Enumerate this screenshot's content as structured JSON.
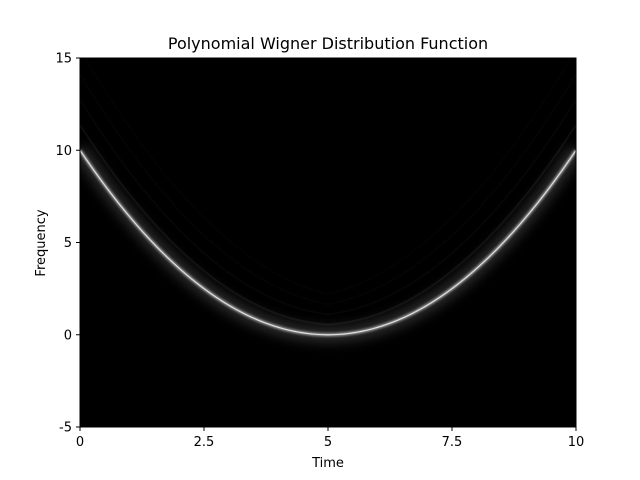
{
  "chart_data": {
    "type": "heatmap",
    "title": "Polynomial Wigner Distribution Function",
    "xlabel": "Time",
    "ylabel": "Frequency",
    "xlim": [
      0,
      10
    ],
    "ylim": [
      -5,
      15
    ],
    "x_ticks": [
      0,
      2.5,
      5,
      7.5,
      10
    ],
    "x_tick_labels": [
      "0",
      "2.5",
      "5",
      "7.5",
      "10"
    ],
    "y_ticks": [
      -5,
      0,
      5,
      10,
      15
    ],
    "y_tick_labels": [
      "-5",
      "0",
      "5",
      "10",
      "15"
    ],
    "grid": false,
    "legend": false,
    "colormap": "gray",
    "background_color": "#000000",
    "ridge": {
      "description": "quadratic instantaneous frequency",
      "x": [
        0,
        1,
        2,
        3,
        4,
        5,
        6,
        7,
        8,
        9,
        10
      ],
      "y": [
        10,
        6.4,
        3.6,
        1.6,
        0.4,
        0,
        0.4,
        1.6,
        3.6,
        6.4,
        10
      ],
      "peak_location": [
        5,
        0
      ]
    }
  }
}
